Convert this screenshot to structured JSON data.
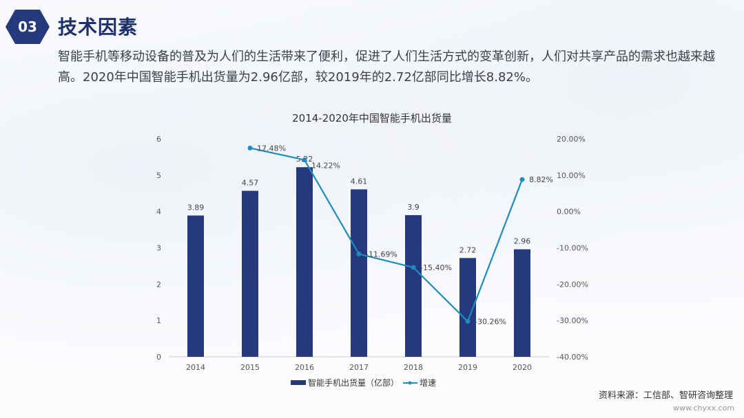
{
  "header": {
    "number": "03",
    "title": "技术因素"
  },
  "description": "智能手机等移动设备的普及为人们的生活带来了便利，促进了人们生活方式的变革创新，人们对共享产品的需求也越来越高。2020年中国智能手机出货量为2.96亿部，较2019年的2.72亿部同比增长8.82%。",
  "source": "资料来源：工信部、智研咨询整理",
  "watermark": "www.chyxx.com",
  "chart_data": {
    "type": "bar+line",
    "title": "2014-2020年中国智能手机出货量",
    "categories": [
      "2014",
      "2015",
      "2016",
      "2017",
      "2018",
      "2019",
      "2020"
    ],
    "series": [
      {
        "name": "智能手机出货量（亿部）",
        "type": "bar",
        "axis": "left",
        "values": [
          3.89,
          4.57,
          5.22,
          4.61,
          3.9,
          2.72,
          2.96
        ],
        "labels": [
          "3.89",
          "4.57",
          "5.22",
          "4.61",
          "3.9",
          "2.72",
          "2.96"
        ],
        "color": "#26397c"
      },
      {
        "name": "增速",
        "type": "line",
        "axis": "right",
        "values": [
          null,
          17.48,
          14.22,
          -11.69,
          -15.4,
          -30.26,
          8.82
        ],
        "labels": [
          "",
          "17.48%",
          "14.22%",
          "-11.69%",
          "-15.40%",
          "-30.26%",
          "8.82%"
        ],
        "color": "#1e8bbf"
      }
    ],
    "left_axis": {
      "ylim": [
        0,
        6
      ],
      "ticks": [
        "0",
        "1",
        "2",
        "3",
        "4",
        "5",
        "6"
      ]
    },
    "right_axis": {
      "ylim": [
        -40,
        20
      ],
      "ticks": [
        "-40.00%",
        "-30.00%",
        "-20.00%",
        "-10.00%",
        "0.00%",
        "10.00%",
        "20.00%"
      ]
    },
    "legend": "bottom",
    "grid": false
  }
}
